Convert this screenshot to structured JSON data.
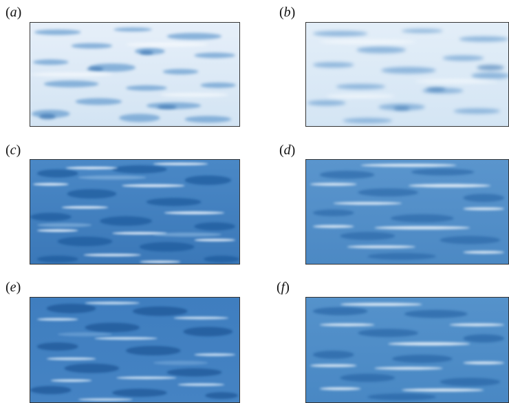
{
  "figure": {
    "panels": [
      {
        "id": "a",
        "label_open": "(",
        "label_letter": "a",
        "label_close": ")",
        "tone": "light"
      },
      {
        "id": "b",
        "label_open": "(",
        "label_letter": "b",
        "label_close": ")",
        "tone": "light"
      },
      {
        "id": "c",
        "label_open": "(",
        "label_letter": "c",
        "label_close": ")",
        "tone": "dark"
      },
      {
        "id": "d",
        "label_open": "(",
        "label_letter": "d",
        "label_close": ")",
        "tone": "medium"
      },
      {
        "id": "e",
        "label_open": "(",
        "label_letter": "e",
        "label_close": ")",
        "tone": "dark"
      },
      {
        "id": "f",
        "label_open": "(",
        "label_letter": "f",
        "label_close": ")",
        "tone": "medium"
      }
    ],
    "colors": {
      "light_base": "#dbe9f6",
      "light_streak": "#5b93c8",
      "dark_base": "#3f7fc0",
      "dark_streak": "#ffffff",
      "deep": "#1f5fa3"
    }
  }
}
